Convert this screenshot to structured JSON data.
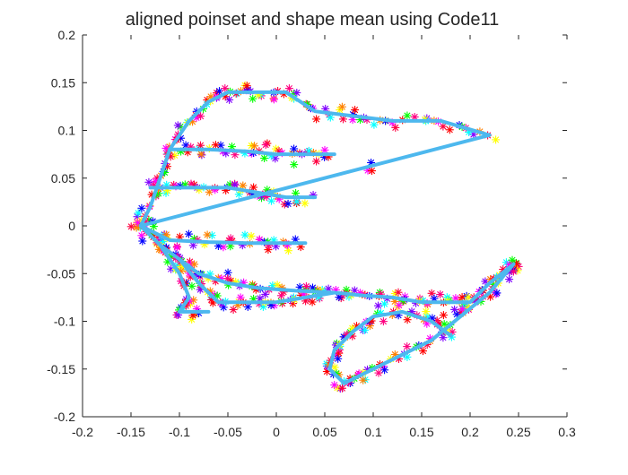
{
  "chart_data": {
    "type": "scatter",
    "title": "aligned poinset and shape mean using Code11",
    "xlabel": "",
    "ylabel": "",
    "xlim": [
      -0.2,
      0.3
    ],
    "ylim": [
      -0.2,
      0.2
    ],
    "xticks": [
      -0.2,
      -0.15,
      -0.1,
      -0.05,
      0,
      0.05,
      0.1,
      0.15,
      0.2,
      0.25,
      0.3
    ],
    "xtick_labels": [
      "-0.2",
      "-0.15",
      "-0.1",
      "-0.05",
      "0",
      "0.05",
      "0.1",
      "0.15",
      "0.2",
      "0.25",
      "0.3"
    ],
    "yticks": [
      -0.2,
      -0.15,
      -0.1,
      -0.05,
      0,
      0.05,
      0.1,
      0.15,
      0.2
    ],
    "ytick_labels": [
      "-0.2",
      "-0.15",
      "-0.1",
      "-0.05",
      "0",
      "0.05",
      "0.1",
      "0.15",
      "0.2"
    ],
    "grid": false,
    "legend": "none",
    "marker": "*",
    "marker_colors": [
      "#ff00ff",
      "#0000ff",
      "#ff0000",
      "#00ff00",
      "#ff0080",
      "#8000ff",
      "#00ffff",
      "#ffff00",
      "#ff8000",
      "#ff0040"
    ],
    "mean_color": "#4db8ee",
    "mean_shape": [
      [
        -0.14,
        0.0
      ],
      [
        -0.13,
        0.02
      ],
      [
        -0.12,
        0.05
      ],
      [
        -0.11,
        0.08
      ],
      [
        -0.09,
        0.11
      ],
      [
        -0.07,
        0.13
      ],
      [
        -0.05,
        0.14
      ],
      [
        -0.02,
        0.14
      ],
      [
        0.01,
        0.14
      ],
      [
        0.04,
        0.12
      ],
      [
        0.08,
        0.115
      ],
      [
        0.12,
        0.11
      ],
      [
        0.17,
        0.11
      ],
      [
        0.22,
        0.095
      ],
      [
        -0.14,
        0.0
      ],
      [
        -0.12,
        -0.02
      ],
      [
        -0.1,
        -0.035
      ],
      [
        -0.08,
        -0.05
      ],
      [
        -0.05,
        -0.06
      ],
      [
        -0.02,
        -0.065
      ],
      [
        0.02,
        -0.068
      ],
      [
        0.06,
        -0.07
      ],
      [
        0.09,
        -0.073
      ],
      [
        0.12,
        -0.075
      ],
      [
        0.15,
        -0.08
      ],
      [
        0.18,
        -0.08
      ],
      [
        0.2,
        -0.08
      ],
      [
        0.22,
        -0.06
      ],
      [
        0.245,
        -0.04
      ],
      [
        0.245,
        -0.04
      ],
      [
        0.22,
        -0.07
      ],
      [
        0.19,
        -0.095
      ],
      [
        0.16,
        -0.12
      ],
      [
        0.12,
        -0.14
      ],
      [
        0.09,
        -0.155
      ],
      [
        0.07,
        -0.165
      ],
      [
        0.055,
        -0.15
      ],
      [
        0.06,
        -0.13
      ],
      [
        0.08,
        -0.11
      ],
      [
        0.1,
        -0.095
      ],
      [
        0.13,
        -0.09
      ],
      [
        0.16,
        -0.1
      ],
      [
        0.18,
        -0.115
      ]
    ],
    "mean_branches": [
      [
        [
          -0.11,
          0.08
        ],
        [
          -0.07,
          0.08
        ],
        [
          -0.03,
          0.078
        ],
        [
          0.0,
          0.075
        ],
        [
          0.03,
          0.075
        ],
        [
          0.06,
          0.075
        ]
      ],
      [
        [
          -0.13,
          0.04
        ],
        [
          -0.09,
          0.04
        ],
        [
          -0.05,
          0.04
        ],
        [
          -0.02,
          0.035
        ],
        [
          0.01,
          0.03
        ],
        [
          0.04,
          0.03
        ]
      ],
      [
        [
          -0.14,
          0.0
        ],
        [
          -0.11,
          -0.015
        ],
        [
          -0.07,
          -0.017
        ],
        [
          -0.03,
          -0.018
        ],
        [
          0.0,
          -0.018
        ],
        [
          0.03,
          -0.018
        ]
      ],
      [
        [
          -0.1,
          -0.035
        ],
        [
          -0.08,
          -0.06
        ],
        [
          -0.06,
          -0.08
        ],
        [
          -0.03,
          -0.08
        ],
        [
          0.0,
          -0.08
        ],
        [
          0.03,
          -0.075
        ],
        [
          0.06,
          -0.07
        ]
      ],
      [
        [
          -0.12,
          -0.02
        ],
        [
          -0.1,
          -0.05
        ],
        [
          -0.09,
          -0.075
        ],
        [
          -0.1,
          -0.09
        ],
        [
          -0.07,
          -0.09
        ]
      ]
    ]
  }
}
